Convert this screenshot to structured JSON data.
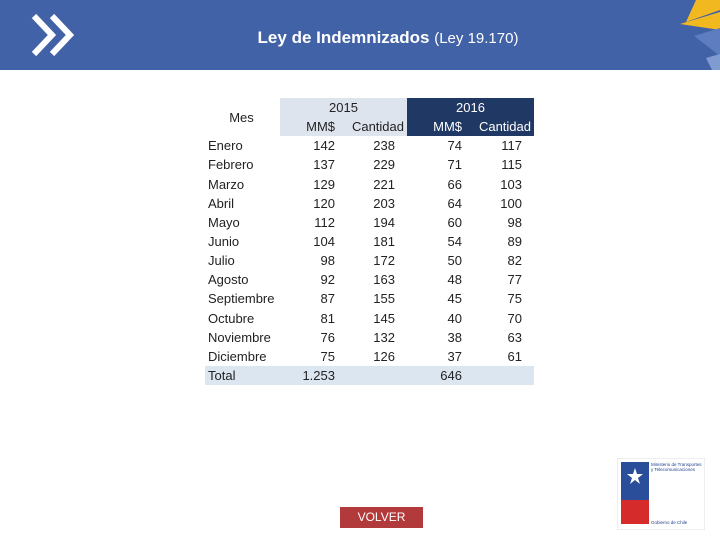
{
  "header": {
    "title": "Ley de Indemnizados",
    "subtitle": "(Ley 19.170)"
  },
  "table": {
    "corner": "Mes",
    "groups": [
      "2015",
      "2016"
    ],
    "subheaders": [
      "MM$",
      "Cantidad",
      "MM$",
      "Cantidad"
    ],
    "rows": [
      [
        "Enero",
        "142",
        "238",
        "74",
        "117"
      ],
      [
        "Febrero",
        "137",
        "229",
        "71",
        "115"
      ],
      [
        "Marzo",
        "129",
        "221",
        "66",
        "103"
      ],
      [
        "Abril",
        "120",
        "203",
        "64",
        "100"
      ],
      [
        "Mayo",
        "112",
        "194",
        "60",
        "98"
      ],
      [
        "Junio",
        "104",
        "181",
        "54",
        "89"
      ],
      [
        "Julio",
        "98",
        "172",
        "50",
        "82"
      ],
      [
        "Agosto",
        "92",
        "163",
        "48",
        "77"
      ],
      [
        "Septiembre",
        "87",
        "155",
        "45",
        "75"
      ],
      [
        "Octubre",
        "81",
        "145",
        "40",
        "70"
      ],
      [
        "Noviembre",
        "76",
        "132",
        "38",
        "63"
      ],
      [
        "Diciembre",
        "75",
        "126",
        "37",
        "61"
      ],
      [
        "Total",
        "1.253",
        null,
        "646",
        null
      ]
    ]
  },
  "button": "VOLVER",
  "logo": {
    "lines": [
      "Ministerio de Transportes y Telecomunicaciones",
      "Gobierno de Chile"
    ]
  }
}
